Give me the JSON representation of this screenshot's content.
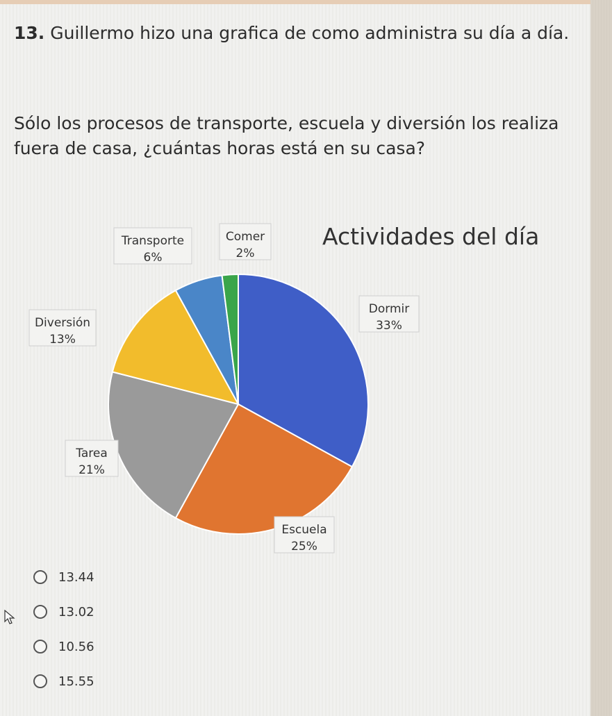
{
  "question": {
    "number": "13.",
    "line1": "Guillermo hizo una grafica de como administra su día a día.",
    "line2": "Sólo los procesos de transporte, escuela y diversión los realiza fuera de casa, ¿cuántas horas está en su casa?"
  },
  "chart_data": {
    "type": "pie",
    "title": "Actividades del día",
    "slices": [
      {
        "label": "Dormir",
        "value": 33,
        "value_label": "33%",
        "color": "#3f5ec7"
      },
      {
        "label": "Escuela",
        "value": 25,
        "value_label": "25%",
        "color": "#e07530"
      },
      {
        "label": "Tarea",
        "value": 21,
        "value_label": "21%",
        "color": "#9a9a9a"
      },
      {
        "label": "Diversión",
        "value": 13,
        "value_label": "13%",
        "color": "#f2bc2c"
      },
      {
        "label": "Transporte",
        "value": 6,
        "value_label": "6%",
        "color": "#4a86c8"
      },
      {
        "label": "Comer",
        "value": 2,
        "value_label": "2%",
        "color": "#3aa54a"
      }
    ]
  },
  "options": [
    {
      "label": "13.44"
    },
    {
      "label": "13.02"
    },
    {
      "label": "10.56"
    },
    {
      "label": "15.55"
    }
  ]
}
